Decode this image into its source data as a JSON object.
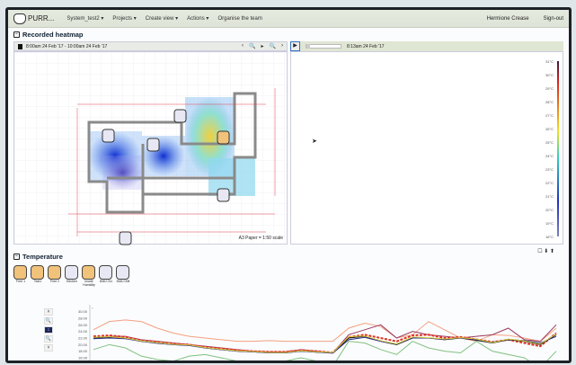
{
  "nav": {
    "brand": "PURR...",
    "items": [
      "System_test2 ▾",
      "Projects ▾",
      "Create view ▾",
      "Actions ▾",
      "Organise the team"
    ],
    "user": "Hermione Crease",
    "signout": "Sign-out"
  },
  "heatmap": {
    "title": "Recorded heatmap",
    "range": "8:00am 24 Feb '17 - 10:00am 24 Feb '17",
    "buttons": [
      "‹",
      "🔍",
      "▸",
      "🔍",
      "›"
    ],
    "play": "▶",
    "current_time": "8:13am 24 Feb '17",
    "scale_text": "A3 Paper = 1:50 scale",
    "color_scale": [
      "31°C",
      "30°C",
      "29°C",
      "28°C",
      "27°C",
      "26°C",
      "25°C",
      "24°C",
      "23°C",
      "22°C",
      "21°C",
      "20°C",
      "19°C",
      "18°C"
    ],
    "sensor_badges": [
      "Free 1",
      "Test1",
      "Free 2",
      "DMU 008",
      "DMU 011",
      "Inside Humidity"
    ]
  },
  "icons_right": "☐ ⬇ ⬆",
  "temperature": {
    "title": "Temperature",
    "sensors": [
      {
        "label": "Free 1",
        "style": "warm"
      },
      {
        "label": "Test1",
        "style": "warm"
      },
      {
        "label": "Free 2",
        "style": "warm"
      },
      {
        "label": "Kitchen",
        "style": "cool"
      },
      {
        "label": "Inside Humidity",
        "style": "warm"
      },
      {
        "label": "DMU 011",
        "style": "cool"
      },
      {
        "label": "DMU 008",
        "style": "cool"
      }
    ],
    "controls": [
      "˄",
      "🔍",
      "↕",
      "🔍",
      "˅"
    ]
  },
  "chart_data": {
    "type": "line",
    "ylabel": "°",
    "yticks": [
      "30.00",
      "28.00",
      "26.00",
      "24.00",
      "22.00",
      "20.00",
      "18.00",
      "16.00",
      "14.00"
    ],
    "ylim": [
      13,
      31
    ],
    "x": [
      0,
      1,
      2,
      3,
      4,
      5,
      6,
      7,
      8,
      9,
      10,
      11,
      12,
      13,
      14,
      15,
      16,
      17,
      18,
      19,
      20,
      21,
      22,
      23,
      24,
      25,
      26,
      27,
      28,
      29
    ],
    "series": [
      {
        "color": "#f4a080",
        "values": [
          24.5,
          27,
          27.5,
          27,
          25,
          23.5,
          22.5,
          22,
          21.5,
          21,
          21,
          21.2,
          21,
          21,
          21,
          21,
          25,
          26.5,
          25.5,
          22,
          23,
          27,
          24.5,
          22,
          21,
          23,
          22.8,
          22,
          21,
          25
        ]
      },
      {
        "color": "#9a3a60",
        "values": [
          22,
          22.5,
          22.5,
          21.5,
          21,
          20.5,
          20,
          19.5,
          19,
          18.5,
          18,
          17.8,
          17.8,
          18.5,
          18,
          17.5,
          23,
          24.5,
          26,
          22,
          24,
          23,
          22.5,
          22,
          22.5,
          23,
          25,
          21.5,
          21,
          26
        ]
      },
      {
        "color": "#e03020",
        "dash": true,
        "values": [
          22.5,
          22.8,
          22.3,
          21.2,
          20.8,
          20.3,
          20,
          19.2,
          18.8,
          18.3,
          18,
          17.8,
          17.8,
          18.3,
          18,
          17.6,
          22.3,
          23,
          22,
          21,
          22.8,
          23,
          22,
          22.3,
          21.6,
          20.8,
          21.5,
          20.5,
          19.5,
          23.5
        ]
      },
      {
        "color": "#111111",
        "values": [
          22,
          22.3,
          22,
          21,
          20.5,
          20,
          19.8,
          19,
          18.5,
          18,
          17.8,
          17.5,
          17.5,
          18,
          17.7,
          17.5,
          22,
          22.5,
          21,
          20,
          22,
          22,
          21.5,
          22,
          21.3,
          20.5,
          21.5,
          21,
          20,
          23
        ]
      },
      {
        "color": "#80c080",
        "values": [
          18.5,
          20,
          19,
          16.5,
          15.5,
          15,
          16.5,
          17,
          16,
          15,
          14.5,
          14.2,
          15,
          16,
          15,
          13.5,
          21,
          20.5,
          18.5,
          17,
          21,
          19,
          18,
          17.5,
          21,
          18,
          17,
          16,
          13,
          18
        ]
      },
      {
        "color": "#2a2a8a",
        "values": [
          21.8,
          22,
          21.8,
          21,
          20.4,
          20,
          19.7,
          19,
          18.5,
          18,
          17.8,
          17.5,
          17.5,
          18,
          17.7,
          17.4,
          21.5,
          22.2,
          21,
          20.2,
          22,
          22,
          21.6,
          22,
          21.5,
          20.7,
          21.6,
          21.2,
          20.5,
          22.5
        ]
      },
      {
        "color": "#d8d040",
        "values": [
          22.2,
          22.4,
          22,
          21.1,
          20.6,
          20.1,
          19.9,
          19.1,
          18.6,
          18.1,
          17.9,
          17.6,
          17.6,
          18.1,
          17.8,
          17.6,
          22.4,
          22.6,
          21.2,
          20.2,
          22.3,
          22.1,
          21.7,
          22.1,
          21.7,
          20.6,
          21.7,
          21.1,
          20.2,
          23.2
        ]
      }
    ]
  }
}
